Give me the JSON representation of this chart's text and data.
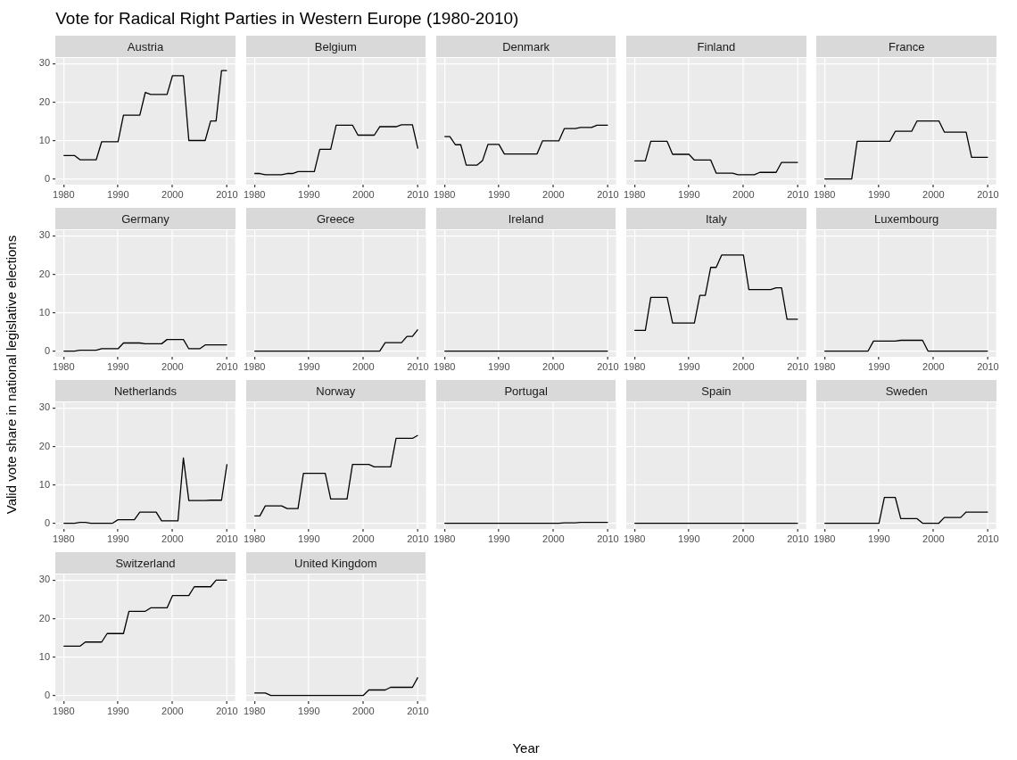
{
  "chart_data": [
    {
      "type": "other",
      "title": "Vote for Radical Right Parties in Western Europe (1980-2010)",
      "xlabel": "Year",
      "ylabel": "Valid vote share in national legislative elections"
    },
    {
      "type": "line",
      "title": "Austria",
      "color": "#000000",
      "grid": true,
      "xlim": [
        1978.5,
        2011.5
      ],
      "ylim": [
        -1.5,
        31.5
      ],
      "xticks": [
        1980,
        1990,
        2000,
        2010
      ],
      "yticks": [
        0,
        10,
        20,
        30
      ],
      "x": [
        1980,
        1981,
        1982,
        1983,
        1984,
        1985,
        1986,
        1987,
        1988,
        1989,
        1990,
        1991,
        1992,
        1993,
        1994,
        1995,
        1996,
        1997,
        1998,
        1999,
        2000,
        2001,
        2002,
        2003,
        2004,
        2005,
        2006,
        2007,
        2008,
        2009,
        2010
      ],
      "values": [
        6.1,
        6.1,
        6.1,
        5.0,
        5.0,
        5.0,
        5.0,
        9.7,
        9.7,
        9.7,
        9.7,
        16.6,
        16.6,
        16.6,
        16.6,
        22.5,
        22.0,
        22.0,
        22.0,
        22.0,
        26.9,
        26.9,
        26.9,
        10.0,
        10.0,
        10.0,
        10.0,
        15.1,
        15.1,
        28.2,
        28.2
      ]
    },
    {
      "type": "line",
      "title": "Belgium",
      "tick_labels": "x",
      "color": "#000000",
      "grid": true,
      "xlim": [
        1978.5,
        2011.5
      ],
      "ylim": [
        -1.5,
        31.5
      ],
      "xticks": [
        1980,
        1990,
        2000,
        2010
      ],
      "yticks": [
        0,
        10,
        20,
        30
      ],
      "x": [
        1980,
        1981,
        1982,
        1983,
        1984,
        1985,
        1986,
        1987,
        1988,
        1989,
        1990,
        1991,
        1992,
        1993,
        1994,
        1995,
        1996,
        1997,
        1998,
        1999,
        2000,
        2001,
        2002,
        2003,
        2004,
        2005,
        2006,
        2007,
        2008,
        2009,
        2010
      ],
      "values": [
        1.4,
        1.4,
        1.1,
        1.1,
        1.1,
        1.1,
        1.4,
        1.4,
        1.9,
        1.9,
        1.9,
        1.9,
        7.7,
        7.7,
        7.7,
        14.0,
        14.0,
        14.0,
        14.0,
        11.4,
        11.4,
        11.4,
        11.4,
        13.6,
        13.6,
        13.6,
        13.6,
        14.1,
        14.1,
        14.1,
        7.9
      ]
    },
    {
      "type": "line",
      "title": "Denmark",
      "tick_labels": "x",
      "color": "#000000",
      "grid": true,
      "xlim": [
        1978.5,
        2011.5
      ],
      "ylim": [
        -1.5,
        31.5
      ],
      "xticks": [
        1980,
        1990,
        2000,
        2010
      ],
      "yticks": [
        0,
        10,
        20,
        30
      ],
      "x": [
        1980,
        1981,
        1982,
        1983,
        1984,
        1985,
        1986,
        1987,
        1988,
        1989,
        1990,
        1991,
        1992,
        1993,
        1994,
        1995,
        1996,
        1997,
        1998,
        1999,
        2000,
        2001,
        2002,
        2003,
        2004,
        2005,
        2006,
        2007,
        2008,
        2009,
        2010
      ],
      "values": [
        11.0,
        11.0,
        8.9,
        8.9,
        3.6,
        3.6,
        3.6,
        4.8,
        9.0,
        9.0,
        9.0,
        6.5,
        6.5,
        6.5,
        6.5,
        6.5,
        6.5,
        6.5,
        9.9,
        9.9,
        9.9,
        9.9,
        13.1,
        13.1,
        13.1,
        13.4,
        13.4,
        13.4,
        14.0,
        14.0,
        14.0
      ]
    },
    {
      "type": "line",
      "title": "Finland",
      "tick_labels": "x",
      "color": "#000000",
      "grid": true,
      "xlim": [
        1978.5,
        2011.5
      ],
      "ylim": [
        -1.5,
        31.5
      ],
      "xticks": [
        1980,
        1990,
        2000,
        2010
      ],
      "yticks": [
        0,
        10,
        20,
        30
      ],
      "x": [
        1980,
        1981,
        1982,
        1983,
        1984,
        1985,
        1986,
        1987,
        1988,
        1989,
        1990,
        1991,
        1992,
        1993,
        1994,
        1995,
        1996,
        1997,
        1998,
        1999,
        2000,
        2001,
        2002,
        2003,
        2004,
        2005,
        2006,
        2007,
        2008,
        2009,
        2010
      ],
      "values": [
        4.7,
        4.7,
        4.7,
        9.8,
        9.8,
        9.8,
        9.8,
        6.4,
        6.4,
        6.4,
        6.4,
        4.9,
        4.9,
        4.9,
        4.9,
        1.5,
        1.5,
        1.5,
        1.5,
        1.1,
        1.1,
        1.1,
        1.1,
        1.7,
        1.7,
        1.7,
        1.7,
        4.3,
        4.3,
        4.3,
        4.3
      ]
    },
    {
      "type": "line",
      "title": "France",
      "tick_labels": "x",
      "color": "#000000",
      "grid": true,
      "xlim": [
        1978.5,
        2011.5
      ],
      "ylim": [
        -1.5,
        31.5
      ],
      "xticks": [
        1980,
        1990,
        2000,
        2010
      ],
      "yticks": [
        0,
        10,
        20,
        30
      ],
      "x": [
        1980,
        1981,
        1982,
        1983,
        1984,
        1985,
        1986,
        1987,
        1988,
        1989,
        1990,
        1991,
        1992,
        1993,
        1994,
        1995,
        1996,
        1997,
        1998,
        1999,
        2000,
        2001,
        2002,
        2003,
        2004,
        2005,
        2006,
        2007,
        2008,
        2009,
        2010
      ],
      "values": [
        0,
        0,
        0,
        0,
        0,
        0,
        9.8,
        9.8,
        9.8,
        9.8,
        9.8,
        9.8,
        9.8,
        12.4,
        12.4,
        12.4,
        12.4,
        15.1,
        15.1,
        15.1,
        15.1,
        15.1,
        12.2,
        12.2,
        12.2,
        12.2,
        12.2,
        5.6,
        5.6,
        5.6,
        5.6
      ]
    },
    {
      "type": "line",
      "title": "Germany",
      "color": "#000000",
      "grid": true,
      "xlim": [
        1978.5,
        2011.5
      ],
      "ylim": [
        -1.5,
        31.5
      ],
      "xticks": [
        1980,
        1990,
        2000,
        2010
      ],
      "yticks": [
        0,
        10,
        20,
        30
      ],
      "x": [
        1980,
        1981,
        1982,
        1983,
        1984,
        1985,
        1986,
        1987,
        1988,
        1989,
        1990,
        1991,
        1992,
        1993,
        1994,
        1995,
        1996,
        1997,
        1998,
        1999,
        2000,
        2001,
        2002,
        2003,
        2004,
        2005,
        2006,
        2007,
        2008,
        2009,
        2010
      ],
      "values": [
        0,
        0,
        0,
        0.2,
        0.2,
        0.2,
        0.2,
        0.6,
        0.6,
        0.6,
        0.6,
        2.1,
        2.1,
        2.1,
        2.1,
        1.9,
        1.9,
        1.9,
        1.9,
        3.0,
        3.0,
        3.0,
        3.0,
        0.6,
        0.6,
        0.6,
        1.6,
        1.6,
        1.6,
        1.6,
        1.6
      ]
    },
    {
      "type": "line",
      "title": "Greece",
      "tick_labels": "x",
      "color": "#000000",
      "grid": true,
      "xlim": [
        1978.5,
        2011.5
      ],
      "ylim": [
        -1.5,
        31.5
      ],
      "xticks": [
        1980,
        1990,
        2000,
        2010
      ],
      "yticks": [
        0,
        10,
        20,
        30
      ],
      "x": [
        1980,
        1981,
        1982,
        1983,
        1984,
        1985,
        1986,
        1987,
        1988,
        1989,
        1990,
        1991,
        1992,
        1993,
        1994,
        1995,
        1996,
        1997,
        1998,
        1999,
        2000,
        2001,
        2002,
        2003,
        2004,
        2005,
        2006,
        2007,
        2008,
        2009,
        2010
      ],
      "values": [
        0,
        0,
        0,
        0,
        0,
        0,
        0,
        0,
        0,
        0,
        0,
        0,
        0,
        0,
        0,
        0,
        0,
        0,
        0,
        0,
        0,
        0,
        0,
        0,
        2.2,
        2.2,
        2.2,
        2.2,
        3.8,
        3.8,
        5.6
      ]
    },
    {
      "type": "line",
      "title": "Ireland",
      "tick_labels": "x",
      "color": "#000000",
      "grid": true,
      "xlim": [
        1978.5,
        2011.5
      ],
      "ylim": [
        -1.5,
        31.5
      ],
      "xticks": [
        1980,
        1990,
        2000,
        2010
      ],
      "yticks": [
        0,
        10,
        20,
        30
      ],
      "x": [
        1980,
        1981,
        1982,
        1983,
        1984,
        1985,
        1986,
        1987,
        1988,
        1989,
        1990,
        1991,
        1992,
        1993,
        1994,
        1995,
        1996,
        1997,
        1998,
        1999,
        2000,
        2001,
        2002,
        2003,
        2004,
        2005,
        2006,
        2007,
        2008,
        2009,
        2010
      ],
      "values": [
        0,
        0,
        0,
        0,
        0,
        0,
        0,
        0,
        0,
        0,
        0,
        0,
        0,
        0,
        0,
        0,
        0,
        0,
        0,
        0,
        0,
        0,
        0,
        0,
        0,
        0,
        0,
        0,
        0,
        0,
        0
      ]
    },
    {
      "type": "line",
      "title": "Italy",
      "tick_labels": "x",
      "color": "#000000",
      "grid": true,
      "xlim": [
        1978.5,
        2011.5
      ],
      "ylim": [
        -1.5,
        31.5
      ],
      "xticks": [
        1980,
        1990,
        2000,
        2010
      ],
      "yticks": [
        0,
        10,
        20,
        30
      ],
      "x": [
        1980,
        1981,
        1982,
        1983,
        1984,
        1985,
        1986,
        1987,
        1988,
        1989,
        1990,
        1991,
        1992,
        1993,
        1994,
        1995,
        1996,
        1997,
        1998,
        1999,
        2000,
        2001,
        2002,
        2003,
        2004,
        2005,
        2006,
        2007,
        2008,
        2009,
        2010
      ],
      "values": [
        5.4,
        5.4,
        5.4,
        14.0,
        14.0,
        14.0,
        14.0,
        7.3,
        7.3,
        7.3,
        7.3,
        7.3,
        14.5,
        14.5,
        21.8,
        21.8,
        25.0,
        25.0,
        25.0,
        25.0,
        25.0,
        16.0,
        16.0,
        16.0,
        16.0,
        16.0,
        16.5,
        16.5,
        8.3,
        8.3,
        8.3
      ]
    },
    {
      "type": "line",
      "title": "Luxembourg",
      "tick_labels": "x",
      "color": "#000000",
      "grid": true,
      "xlim": [
        1978.5,
        2011.5
      ],
      "ylim": [
        -1.5,
        31.5
      ],
      "xticks": [
        1980,
        1990,
        2000,
        2010
      ],
      "yticks": [
        0,
        10,
        20,
        30
      ],
      "x": [
        1980,
        1981,
        1982,
        1983,
        1984,
        1985,
        1986,
        1987,
        1988,
        1989,
        1990,
        1991,
        1992,
        1993,
        1994,
        1995,
        1996,
        1997,
        1998,
        1999,
        2000,
        2001,
        2002,
        2003,
        2004,
        2005,
        2006,
        2007,
        2008,
        2009,
        2010
      ],
      "values": [
        0,
        0,
        0,
        0,
        0,
        0,
        0,
        0,
        0,
        2.6,
        2.6,
        2.6,
        2.6,
        2.6,
        2.8,
        2.8,
        2.8,
        2.8,
        2.8,
        0,
        0,
        0,
        0,
        0,
        0,
        0,
        0,
        0,
        0,
        0,
        0
      ]
    },
    {
      "type": "line",
      "title": "Netherlands",
      "color": "#000000",
      "grid": true,
      "xlim": [
        1978.5,
        2011.5
      ],
      "ylim": [
        -1.5,
        31.5
      ],
      "xticks": [
        1980,
        1990,
        2000,
        2010
      ],
      "yticks": [
        0,
        10,
        20,
        30
      ],
      "x": [
        1980,
        1981,
        1982,
        1983,
        1984,
        1985,
        1986,
        1987,
        1988,
        1989,
        1990,
        1991,
        1992,
        1993,
        1994,
        1995,
        1996,
        1997,
        1998,
        1999,
        2000,
        2001,
        2002,
        2003,
        2004,
        2005,
        2006,
        2007,
        2008,
        2009,
        2010
      ],
      "values": [
        0,
        0,
        0,
        0.2,
        0.2,
        0,
        0,
        0,
        0,
        0,
        0.9,
        0.9,
        0.9,
        0.9,
        2.9,
        2.9,
        2.9,
        2.9,
        0.6,
        0.6,
        0.6,
        0.6,
        17.0,
        5.9,
        5.9,
        5.9,
        5.9,
        6.0,
        6.0,
        6.0,
        15.4
      ]
    },
    {
      "type": "line",
      "title": "Norway",
      "tick_labels": "x",
      "color": "#000000",
      "grid": true,
      "xlim": [
        1978.5,
        2011.5
      ],
      "ylim": [
        -1.5,
        31.5
      ],
      "xticks": [
        1980,
        1990,
        2000,
        2010
      ],
      "yticks": [
        0,
        10,
        20,
        30
      ],
      "x": [
        1980,
        1981,
        1982,
        1983,
        1984,
        1985,
        1986,
        1987,
        1988,
        1989,
        1990,
        1991,
        1992,
        1993,
        1994,
        1995,
        1996,
        1997,
        1998,
        1999,
        2000,
        2001,
        2002,
        2003,
        2004,
        2005,
        2006,
        2007,
        2008,
        2009,
        2010
      ],
      "values": [
        1.9,
        1.9,
        4.5,
        4.5,
        4.5,
        4.5,
        3.8,
        3.8,
        3.8,
        13.0,
        13.0,
        13.0,
        13.0,
        13.0,
        6.3,
        6.3,
        6.3,
        6.3,
        15.3,
        15.3,
        15.3,
        15.3,
        14.7,
        14.7,
        14.7,
        14.7,
        22.1,
        22.1,
        22.1,
        22.1,
        22.9
      ]
    },
    {
      "type": "line",
      "title": "Portugal",
      "tick_labels": "x",
      "color": "#000000",
      "grid": true,
      "xlim": [
        1978.5,
        2011.5
      ],
      "ylim": [
        -1.5,
        31.5
      ],
      "xticks": [
        1980,
        1990,
        2000,
        2010
      ],
      "yticks": [
        0,
        10,
        20,
        30
      ],
      "x": [
        1980,
        1981,
        1982,
        1983,
        1984,
        1985,
        1986,
        1987,
        1988,
        1989,
        1990,
        1991,
        1992,
        1993,
        1994,
        1995,
        1996,
        1997,
        1998,
        1999,
        2000,
        2001,
        2002,
        2003,
        2004,
        2005,
        2006,
        2007,
        2008,
        2009,
        2010
      ],
      "values": [
        0,
        0,
        0,
        0,
        0,
        0,
        0,
        0,
        0,
        0,
        0,
        0,
        0,
        0,
        0,
        0,
        0,
        0,
        0,
        0,
        0,
        0,
        0.1,
        0.1,
        0.1,
        0.2,
        0.2,
        0.2,
        0.2,
        0.2,
        0.2
      ]
    },
    {
      "type": "line",
      "title": "Spain",
      "tick_labels": "x",
      "color": "#000000",
      "grid": true,
      "xlim": [
        1978.5,
        2011.5
      ],
      "ylim": [
        -1.5,
        31.5
      ],
      "xticks": [
        1980,
        1990,
        2000,
        2010
      ],
      "yticks": [
        0,
        10,
        20,
        30
      ],
      "x": [
        1980,
        1981,
        1982,
        1983,
        1984,
        1985,
        1986,
        1987,
        1988,
        1989,
        1990,
        1991,
        1992,
        1993,
        1994,
        1995,
        1996,
        1997,
        1998,
        1999,
        2000,
        2001,
        2002,
        2003,
        2004,
        2005,
        2006,
        2007,
        2008,
        2009,
        2010
      ],
      "values": [
        0,
        0,
        0,
        0,
        0,
        0,
        0,
        0,
        0,
        0,
        0,
        0,
        0,
        0,
        0,
        0,
        0,
        0,
        0,
        0,
        0,
        0,
        0,
        0,
        0,
        0,
        0,
        0,
        0,
        0,
        0
      ]
    },
    {
      "type": "line",
      "title": "Sweden",
      "tick_labels": "x",
      "color": "#000000",
      "grid": true,
      "xlim": [
        1978.5,
        2011.5
      ],
      "ylim": [
        -1.5,
        31.5
      ],
      "xticks": [
        1980,
        1990,
        2000,
        2010
      ],
      "yticks": [
        0,
        10,
        20,
        30
      ],
      "x": [
        1980,
        1981,
        1982,
        1983,
        1984,
        1985,
        1986,
        1987,
        1988,
        1989,
        1990,
        1991,
        1992,
        1993,
        1994,
        1995,
        1996,
        1997,
        1998,
        1999,
        2000,
        2001,
        2002,
        2003,
        2004,
        2005,
        2006,
        2007,
        2008,
        2009,
        2010
      ],
      "values": [
        0,
        0,
        0,
        0,
        0,
        0,
        0,
        0,
        0,
        0,
        0,
        6.7,
        6.7,
        6.7,
        1.2,
        1.2,
        1.2,
        1.2,
        0,
        0,
        0,
        0,
        1.5,
        1.5,
        1.5,
        1.5,
        2.9,
        2.9,
        2.9,
        2.9,
        2.9
      ]
    },
    {
      "type": "line",
      "title": "Switzerland",
      "color": "#000000",
      "grid": true,
      "xlim": [
        1978.5,
        2011.5
      ],
      "ylim": [
        -1.5,
        31.5
      ],
      "xticks": [
        1980,
        1990,
        2000,
        2010
      ],
      "yticks": [
        0,
        10,
        20,
        30
      ],
      "x": [
        1980,
        1981,
        1982,
        1983,
        1984,
        1985,
        1986,
        1987,
        1988,
        1989,
        1990,
        1991,
        1992,
        1993,
        1994,
        1995,
        1996,
        1997,
        1998,
        1999,
        2000,
        2001,
        2002,
        2003,
        2004,
        2005,
        2006,
        2007,
        2008,
        2009,
        2010
      ],
      "values": [
        12.8,
        12.8,
        12.8,
        12.8,
        13.9,
        13.9,
        13.9,
        13.9,
        16.1,
        16.1,
        16.1,
        16.1,
        21.9,
        21.9,
        21.9,
        21.9,
        22.8,
        22.8,
        22.8,
        22.8,
        26.0,
        26.0,
        26.0,
        26.0,
        28.3,
        28.3,
        28.3,
        28.3,
        30.0,
        30.0,
        30.0
      ]
    },
    {
      "type": "line",
      "title": "United Kingdom",
      "tick_labels": "x",
      "color": "#000000",
      "grid": true,
      "xlim": [
        1978.5,
        2011.5
      ],
      "ylim": [
        -1.5,
        31.5
      ],
      "xticks": [
        1980,
        1990,
        2000,
        2010
      ],
      "yticks": [
        0,
        10,
        20,
        30
      ],
      "x": [
        1980,
        1981,
        1982,
        1983,
        1984,
        1985,
        1986,
        1987,
        1988,
        1989,
        1990,
        1991,
        1992,
        1993,
        1994,
        1995,
        1996,
        1997,
        1998,
        1999,
        2000,
        2001,
        2002,
        2003,
        2004,
        2005,
        2006,
        2007,
        2008,
        2009,
        2010
      ],
      "values": [
        0.6,
        0.6,
        0.6,
        0,
        0,
        0,
        0,
        0,
        0,
        0,
        0,
        0,
        0,
        0,
        0,
        0,
        0,
        0,
        0,
        0,
        0,
        1.4,
        1.4,
        1.4,
        1.4,
        2.1,
        2.1,
        2.1,
        2.1,
        2.1,
        4.7
      ]
    }
  ]
}
